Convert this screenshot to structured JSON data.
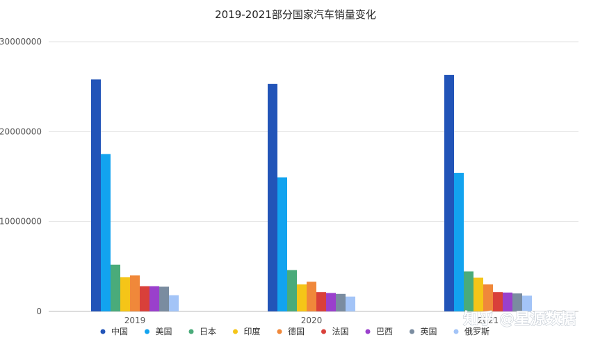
{
  "chart_data": {
    "type": "bar",
    "title": "2019-2021部分国家汽车销量变化",
    "categories": [
      "2019",
      "2020",
      "2021"
    ],
    "ylim": [
      0,
      30000000
    ],
    "yticks": [
      "0",
      "10000000",
      "20000000",
      "30000000"
    ],
    "ytick_values": [
      0,
      10000000,
      20000000,
      30000000
    ],
    "grid": true,
    "legend_position": "bottom",
    "series": [
      {
        "name": "中国",
        "color": "#2254b8",
        "values": [
          25800000,
          25300000,
          26300000
        ]
      },
      {
        "name": "美国",
        "color": "#12a3ef",
        "values": [
          17500000,
          14900000,
          15400000
        ]
      },
      {
        "name": "日本",
        "color": "#4aab7a",
        "values": [
          5200000,
          4600000,
          4450000
        ]
      },
      {
        "name": "印度",
        "color": "#f5c518",
        "values": [
          3800000,
          3000000,
          3750000
        ]
      },
      {
        "name": "德国",
        "color": "#f0883a",
        "values": [
          4000000,
          3300000,
          3000000
        ]
      },
      {
        "name": "法国",
        "color": "#d9403a",
        "values": [
          2800000,
          2150000,
          2150000
        ]
      },
      {
        "name": "巴西",
        "color": "#9a40cc",
        "values": [
          2800000,
          2050000,
          2100000
        ]
      },
      {
        "name": "英国",
        "color": "#7a8ca0",
        "values": [
          2750000,
          1950000,
          2000000
        ]
      },
      {
        "name": "俄罗斯",
        "color": "#a3c4f7",
        "values": [
          1800000,
          1650000,
          1750000
        ]
      }
    ]
  },
  "watermark": {
    "text": "知乎 @星源数据"
  }
}
